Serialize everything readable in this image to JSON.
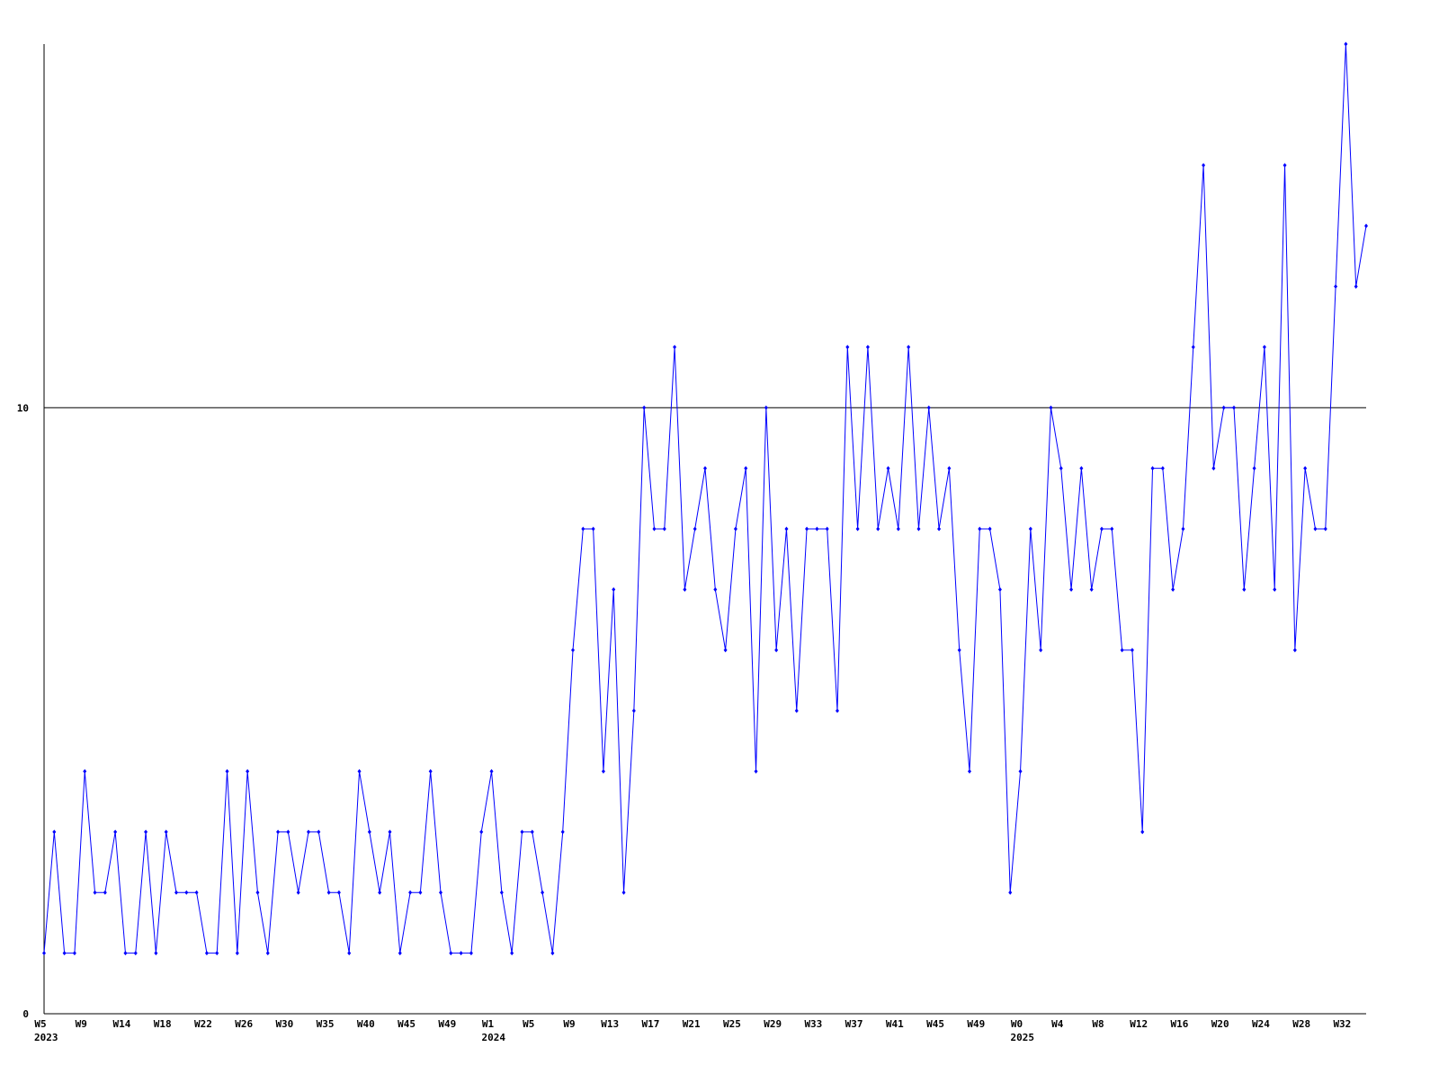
{
  "chart_data": {
    "type": "line",
    "categories": [
      "W5",
      null,
      null,
      null,
      "W9",
      null,
      null,
      null,
      "W14",
      null,
      null,
      null,
      "W18",
      null,
      null,
      null,
      "W22",
      null,
      null,
      null,
      "W26",
      null,
      null,
      null,
      "W30",
      null,
      null,
      null,
      "W35",
      null,
      null,
      null,
      "W40",
      null,
      null,
      null,
      "W45",
      null,
      null,
      null,
      "W49",
      null,
      null,
      null,
      "W1",
      null,
      null,
      null,
      "W5",
      null,
      null,
      null,
      "W9",
      null,
      null,
      null,
      "W13",
      null,
      null,
      null,
      "W17",
      null,
      null,
      null,
      "W21",
      null,
      null,
      null,
      "W25",
      null,
      null,
      null,
      "W29",
      null,
      null,
      null,
      "W33",
      null,
      null,
      null,
      "W37",
      null,
      null,
      null,
      "W41",
      null,
      null,
      null,
      "W45",
      null,
      null,
      null,
      "W49",
      null,
      null,
      null,
      "W0",
      null,
      null,
      null,
      "W4",
      null,
      null,
      null,
      "W8",
      null,
      null,
      null,
      "W12",
      null,
      null,
      null,
      "W16",
      null,
      null,
      null,
      "W20",
      null,
      null,
      null,
      "W24",
      null,
      null,
      null,
      "W28",
      null,
      null,
      null,
      "W32",
      null,
      null
    ],
    "category_years": [
      "2023",
      null,
      null,
      null,
      null,
      null,
      null,
      null,
      null,
      null,
      null,
      null,
      null,
      null,
      null,
      null,
      null,
      null,
      null,
      null,
      null,
      null,
      null,
      null,
      null,
      null,
      null,
      null,
      null,
      null,
      null,
      null,
      null,
      null,
      null,
      null,
      null,
      null,
      null,
      null,
      null,
      null,
      null,
      null,
      "2024",
      null,
      null,
      null,
      null,
      null,
      null,
      null,
      null,
      null,
      null,
      null,
      null,
      null,
      null,
      null,
      null,
      null,
      null,
      null,
      null,
      null,
      null,
      null,
      null,
      null,
      null,
      null,
      null,
      null,
      null,
      null,
      null,
      null,
      null,
      null,
      null,
      null,
      null,
      null,
      null,
      null,
      null,
      null,
      null,
      null,
      null,
      null,
      null,
      null,
      null,
      null,
      "2025",
      null,
      null,
      null,
      null,
      null,
      null,
      null,
      null,
      null,
      null,
      null,
      null,
      null,
      null,
      null,
      null,
      null,
      null,
      null,
      null,
      null,
      null,
      null,
      null,
      null,
      null,
      null,
      null,
      null,
      null,
      null,
      null,
      null,
      null
    ],
    "values": [
      1,
      3,
      1,
      1,
      4,
      2,
      2,
      3,
      1,
      1,
      3,
      1,
      3,
      2,
      2,
      2,
      1,
      1,
      4,
      1,
      4,
      2,
      1,
      3,
      3,
      2,
      3,
      3,
      2,
      2,
      1,
      4,
      3,
      2,
      3,
      1,
      2,
      2,
      4,
      2,
      1,
      1,
      1,
      3,
      4,
      2,
      1,
      3,
      3,
      2,
      1,
      3,
      6,
      8,
      8,
      4,
      7,
      2,
      5,
      10,
      8,
      8,
      11,
      7,
      8,
      9,
      7,
      6,
      8,
      9,
      4,
      10,
      6,
      8,
      5,
      8,
      8,
      8,
      5,
      11,
      8,
      11,
      8,
      9,
      8,
      11,
      8,
      10,
      8,
      9,
      6,
      4,
      8,
      8,
      7,
      2,
      4,
      8,
      6,
      10,
      9,
      7,
      9,
      7,
      8,
      8,
      6,
      6,
      3,
      9,
      9,
      7,
      8,
      11,
      14,
      9,
      10,
      10,
      7,
      9,
      11,
      7,
      14,
      6,
      9,
      8,
      8,
      12,
      16,
      12,
      13
    ],
    "color": "#0000ff",
    "ylim": [
      0,
      16
    ],
    "yticks": [
      0,
      10
    ],
    "grid": true
  }
}
